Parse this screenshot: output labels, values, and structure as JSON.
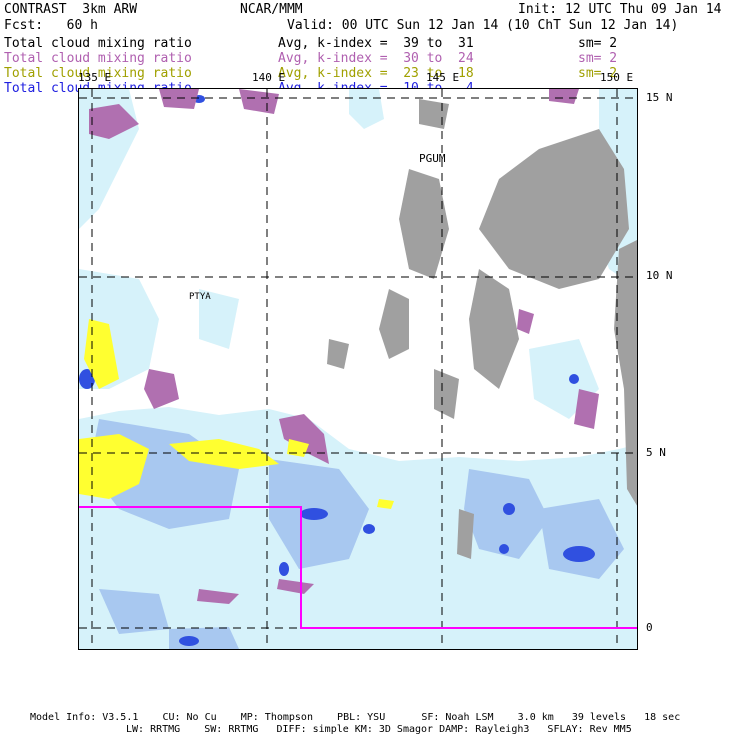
{
  "header": {
    "model": "CONTRAST  3km ARW",
    "center": "NCAR/MMM",
    "init": "Init: 12 UTC Thu 09 Jan 14",
    "fcst": "Fcst:   60 h",
    "valid": "Valid: 00 UTC Sun 12 Jan 14 (10 ChT Sun 12 Jan 14)"
  },
  "legend": [
    {
      "field": "Total cloud mixing ratio",
      "avg": "Avg, k-index =  39 to  31",
      "sm": "sm= 2",
      "color": "#000000"
    },
    {
      "field": "Total cloud mixing ratio",
      "avg": "Avg, k-index =  30 to  24",
      "sm": "sm= 2",
      "color": "#b060b0"
    },
    {
      "field": "Total cloud mixing ratio",
      "avg": "Avg, k-index =  23 to  18",
      "sm": "sm= 2",
      "color": "#a0a000"
    },
    {
      "field": "Total cloud mixing ratio",
      "avg": "Avg, k-index =  10 to   4",
      "sm": "",
      "color": "#2020e0"
    }
  ],
  "map": {
    "lon_labels": [
      "135 E",
      "140 E",
      "145 E",
      "150 E"
    ],
    "lat_labels": [
      "15 N",
      "10 N",
      "5 N",
      "0"
    ],
    "stations": [
      "PGUM",
      "PTYA"
    ],
    "colors": {
      "low_cloud": "#a0a0a0",
      "mid_cloud": "#b070b0",
      "high_cloud_yellow": "#ffff30",
      "deep_cloud_light": "#d6f2fa",
      "deep_cloud_medium": "#a8c8f0",
      "deep_cloud_dark": "#3050e0",
      "domain_box": "#ff00ff",
      "grid": "#000000"
    }
  },
  "footer": {
    "line1": "Model Info: V3.5.1    CU: No Cu    MP: Thompson    PBL: YSU      SF: Noah LSM    3.0 km   39 levels   18 sec",
    "line2": "LW: RRTMG    SW: RRTMG   DIFF: simple KM: 3D Smagor DAMP: Rayleigh3   SFLAY: Rev MM5"
  }
}
